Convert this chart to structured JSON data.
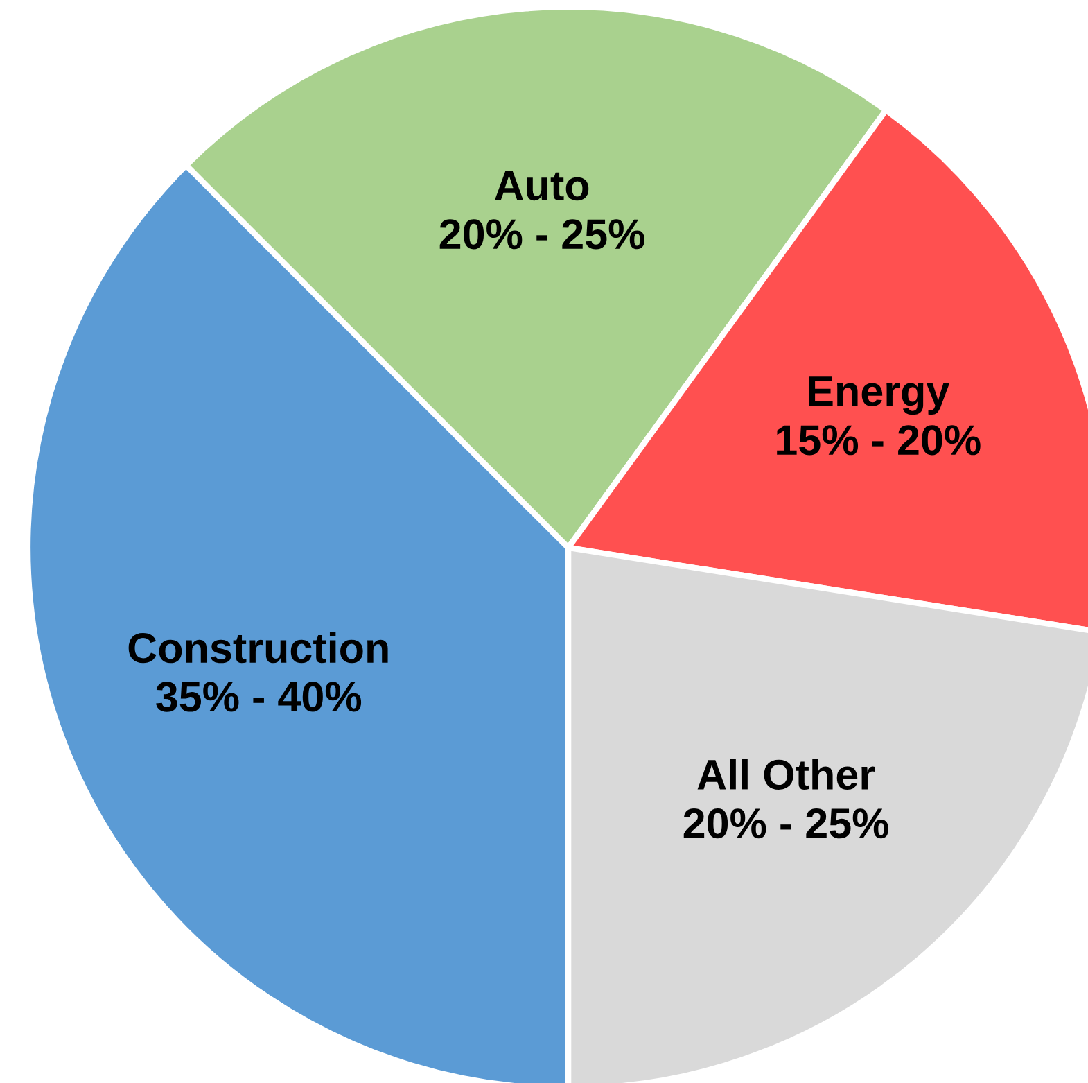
{
  "chart_data": {
    "type": "pie",
    "categories": [
      "Auto\n20% - 25%",
      "Energy\n15% - 20%",
      "All Other\n20% - 25%",
      "Construction\n35% - 40%"
    ],
    "values": [
      22.5,
      17.5,
      22.5,
      37.5
    ],
    "colors": [
      "#a9d18e",
      "#ff5050",
      "#d9d9d9",
      "#5b9bd5"
    ]
  }
}
